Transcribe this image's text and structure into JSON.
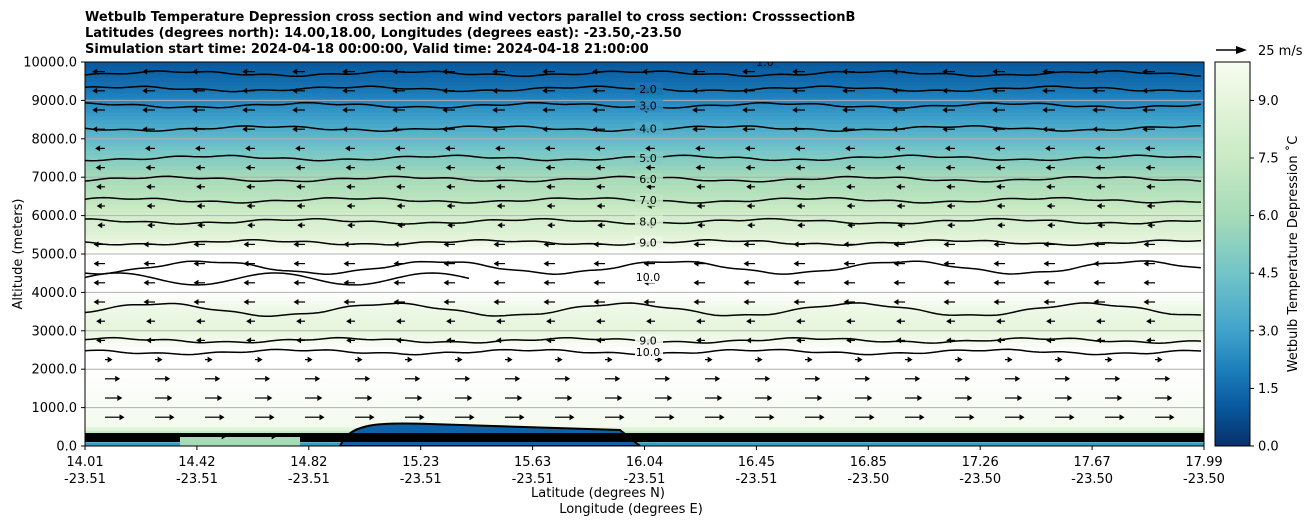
{
  "chart_data": {
    "type": "heatmap",
    "title_lines": [
      "Wetbulb Temperature Depression cross section and wind vectors parallel to cross section: CrosssectionB",
      "Latitudes (degrees north): 14.00,18.00, Longitudes (degrees east): -23.50,-23.50",
      "Simulation start time: 2024-04-18 00:00:00, Valid time: 2024-04-18 21:00:00"
    ],
    "ylabel": "Altitude (meters)",
    "xlabel_lat": "Latitude (degrees N)",
    "xlabel_lon": "Longitude (degrees E)",
    "ylim": [
      0,
      10000
    ],
    "yticks": [
      "0.0",
      "1000.0",
      "2000.0",
      "3000.0",
      "4000.0",
      "5000.0",
      "6000.0",
      "7000.0",
      "8000.0",
      "9000.0",
      "10000.0"
    ],
    "xticks": [
      {
        "lat": "14.01",
        "lon": "-23.51"
      },
      {
        "lat": "14.42",
        "lon": "-23.51"
      },
      {
        "lat": "14.82",
        "lon": "-23.51"
      },
      {
        "lat": "15.23",
        "lon": "-23.51"
      },
      {
        "lat": "15.63",
        "lon": "-23.51"
      },
      {
        "lat": "16.04",
        "lon": "-23.51"
      },
      {
        "lat": "16.45",
        "lon": "-23.51"
      },
      {
        "lat": "16.85",
        "lon": "-23.50"
      },
      {
        "lat": "17.26",
        "lon": "-23.50"
      },
      {
        "lat": "17.67",
        "lon": "-23.50"
      },
      {
        "lat": "17.99",
        "lon": "-23.50"
      }
    ],
    "grid": "horizontal",
    "colorbar": {
      "label": "Wetbulb Temperature Depression ˚C",
      "ticks": [
        "0.0",
        "1.5",
        "3.0",
        "4.5",
        "6.0",
        "7.5",
        "9.0"
      ],
      "range": [
        0,
        10
      ]
    },
    "vector_key": "25 m/s",
    "contour_labels": [
      {
        "text": "1.0",
        "alt": 10000
      },
      {
        "text": "2.0",
        "alt": 9300
      },
      {
        "text": "3.0",
        "alt": 8870
      },
      {
        "text": "4.0",
        "alt": 8270
      },
      {
        "text": "5.0",
        "alt": 7500
      },
      {
        "text": "6.0",
        "alt": 6950
      },
      {
        "text": "7.0",
        "alt": 6400
      },
      {
        "text": "8.0",
        "alt": 5850
      },
      {
        "text": "9.0",
        "alt": 5300
      },
      {
        "text": "10.0",
        "alt": 4400
      },
      {
        "text": "9.0",
        "alt": 2750
      },
      {
        "text": "10.0",
        "alt": 2450
      }
    ],
    "depression_profile": [
      {
        "alt": 0,
        "value": 2.0
      },
      {
        "alt": 500,
        "value": 9.5
      },
      {
        "alt": 2000,
        "value": 10.0
      },
      {
        "alt": 2500,
        "value": 10.0
      },
      {
        "alt": 3000,
        "value": 9.0
      },
      {
        "alt": 3500,
        "value": 9.2
      },
      {
        "alt": 4000,
        "value": 10.0
      },
      {
        "alt": 5000,
        "value": 10.0
      },
      {
        "alt": 5500,
        "value": 8.7
      },
      {
        "alt": 6000,
        "value": 8.0
      },
      {
        "alt": 6500,
        "value": 6.8
      },
      {
        "alt": 7000,
        "value": 6.0
      },
      {
        "alt": 7500,
        "value": 5.0
      },
      {
        "alt": 8000,
        "value": 4.0
      },
      {
        "alt": 8500,
        "value": 3.0
      },
      {
        "alt": 9000,
        "value": 2.2
      },
      {
        "alt": 9500,
        "value": 1.5
      },
      {
        "alt": 10000,
        "value": 1.0
      }
    ]
  }
}
